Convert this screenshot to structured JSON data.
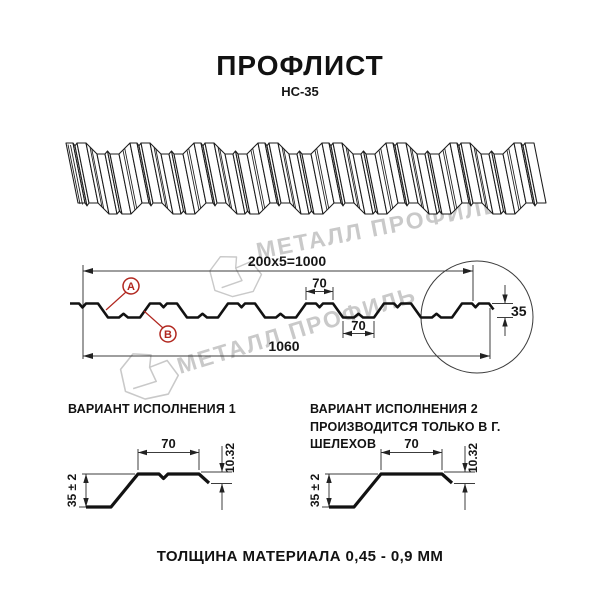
{
  "colors": {
    "accent": "#b1271f",
    "watermark": "#c9c9c9",
    "ink": "#161616"
  },
  "header": {
    "title": "ПРОФЛИСТ",
    "subtitle": "НС-35"
  },
  "watermark": {
    "text": "МЕТАЛЛ ПРОФИЛЬ"
  },
  "cross_section": {
    "dim_total_top": "200x5=1000",
    "dim_crest_width": "70",
    "dim_valley_width": "70",
    "dim_overall_width": "1060",
    "dim_height": "35",
    "label_a": "A",
    "label_b": "B"
  },
  "variant1": {
    "heading": "ВАРИАНТ ИСПОЛНЕНИЯ 1",
    "dim_crest": "70",
    "dim_lip": "10.32",
    "dim_height": "35 ± 2"
  },
  "variant2": {
    "heading": "ВАРИАНТ ИСПОЛНЕНИЯ 2",
    "subheading": "ПРОИЗВОДИТСЯ ТОЛЬКО В Г. ШЕЛЕХОВ",
    "dim_crest": "70",
    "dim_lip": "10.32",
    "dim_height": "35 ± 2"
  },
  "footer": {
    "note": "ТОЛЩИНА МАТЕРИАЛА 0,45 - 0,9 ММ"
  }
}
